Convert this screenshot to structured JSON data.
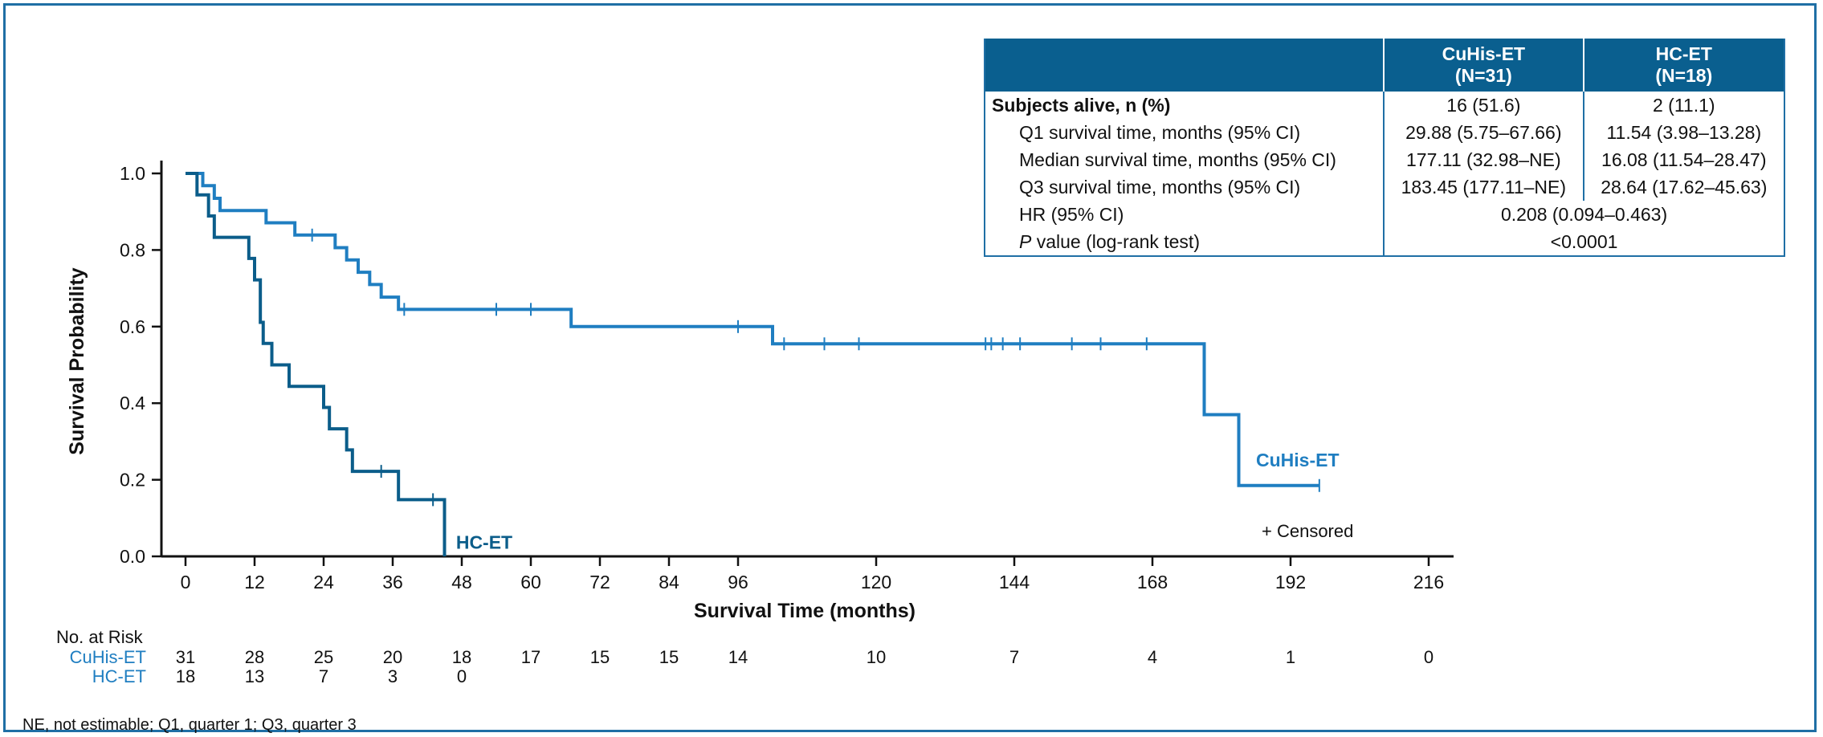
{
  "chart_data": {
    "type": "line",
    "subtype": "kaplan-meier",
    "xlabel": "Survival Time (months)",
    "ylabel": "Survival Probability",
    "xlim": [
      0,
      216
    ],
    "ylim": [
      0,
      1.0
    ],
    "xticks": [
      0,
      12,
      24,
      36,
      48,
      60,
      72,
      84,
      96,
      120,
      144,
      168,
      192,
      216
    ],
    "yticks": [
      "0.0",
      "0.2",
      "0.4",
      "0.6",
      "0.8",
      "1.0"
    ],
    "censored_legend": "+ Censored",
    "series": [
      {
        "name": "CuHis-ET",
        "color": "#1f7ec1",
        "label_pos": [
          186,
          0.235
        ],
        "steps": [
          [
            0,
            1.0
          ],
          [
            3,
            0.968
          ],
          [
            5,
            0.935
          ],
          [
            6,
            0.903
          ],
          [
            14,
            0.871
          ],
          [
            19,
            0.839
          ],
          [
            26,
            0.806
          ],
          [
            28,
            0.774
          ],
          [
            30,
            0.742
          ],
          [
            32,
            0.71
          ],
          [
            34,
            0.677
          ],
          [
            37,
            0.645
          ],
          [
            67,
            0.6
          ],
          [
            102,
            0.555
          ],
          [
            177,
            0.37
          ],
          [
            183,
            0.185
          ],
          [
            197,
            0.185
          ]
        ],
        "censored": [
          [
            22,
            0.839
          ],
          [
            38,
            0.645
          ],
          [
            54,
            0.645
          ],
          [
            60,
            0.645
          ],
          [
            96,
            0.6
          ],
          [
            104,
            0.555
          ],
          [
            111,
            0.555
          ],
          [
            117,
            0.555
          ],
          [
            139,
            0.555
          ],
          [
            140,
            0.555
          ],
          [
            142,
            0.555
          ],
          [
            145,
            0.555
          ],
          [
            154,
            0.555
          ],
          [
            159,
            0.555
          ],
          [
            167,
            0.555
          ],
          [
            197,
            0.185
          ]
        ]
      },
      {
        "name": "HC-ET",
        "color": "#0b5d8a",
        "label_pos": [
          47,
          0.02
        ],
        "steps": [
          [
            0,
            1.0
          ],
          [
            2,
            0.944
          ],
          [
            4,
            0.889
          ],
          [
            5,
            0.833
          ],
          [
            11,
            0.778
          ],
          [
            12,
            0.722
          ],
          [
            13,
            0.611
          ],
          [
            13.5,
            0.556
          ],
          [
            15,
            0.5
          ],
          [
            18,
            0.444
          ],
          [
            24,
            0.389
          ],
          [
            25,
            0.333
          ],
          [
            28,
            0.278
          ],
          [
            29,
            0.222
          ],
          [
            37,
            0.148
          ],
          [
            45,
            0.148
          ],
          [
            45,
            0.0
          ]
        ],
        "censored": [
          [
            34,
            0.222
          ],
          [
            43,
            0.148
          ]
        ]
      }
    ],
    "risk_table": {
      "title": "No. at Risk",
      "times": [
        0,
        12,
        24,
        36,
        48,
        60,
        72,
        84,
        96,
        120,
        144,
        168,
        192,
        216
      ],
      "rows": [
        {
          "name": "CuHis-ET",
          "counts": [
            "31",
            "28",
            "25",
            "20",
            "18",
            "17",
            "15",
            "15",
            "14",
            "10",
            "7",
            "4",
            "1",
            "0"
          ]
        },
        {
          "name": "HC-ET",
          "counts": [
            "18",
            "13",
            "7",
            "3",
            "0"
          ]
        }
      ]
    }
  },
  "stats_table": {
    "headers": [
      "",
      "CuHis-ET\n(N=31)",
      "HC-ET\n(N=18)"
    ],
    "header_lines": [
      [
        "CuHis-ET",
        "(N=31)"
      ],
      [
        "HC-ET",
        "(N=18)"
      ]
    ],
    "rows": [
      {
        "label": "Subjects alive, n (%)",
        "cuhis": "16 (51.6)",
        "hc": "2 (11.1)"
      },
      {
        "label": "Q1 survival time, months (95% CI)",
        "cuhis": "29.88 (5.75–67.66)",
        "hc": "11.54 (3.98–13.28)"
      },
      {
        "label": "Median survival time, months (95% CI)",
        "cuhis": "177.11 (32.98–NE)",
        "hc": "16.08 (11.54–28.47)"
      },
      {
        "label": "Q3 survival time, months (95% CI)",
        "cuhis": "183.45 (177.11–NE)",
        "hc": "28.64 (17.62–45.63)"
      },
      {
        "label": "HR (95% CI)",
        "combined": "0.208 (0.094–0.463)"
      },
      {
        "label_italic": "P",
        "label_rest": " value (log-rank test)",
        "combined": "<0.0001"
      }
    ]
  },
  "footnote": "NE, not estimable; Q1, quarter 1; Q3, quarter 3"
}
